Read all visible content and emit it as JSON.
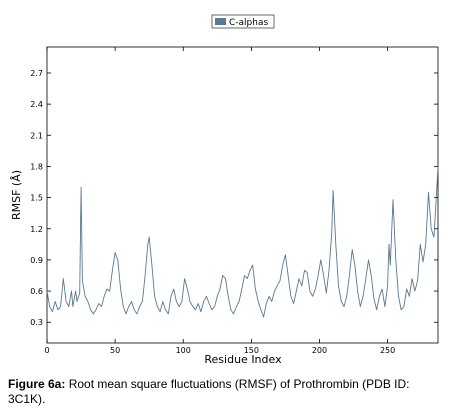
{
  "chart_data": {
    "type": "line",
    "xlabel": "Residue Index",
    "ylabel": "RMSF (Å)",
    "xlim": [
      0,
      287
    ],
    "ylim": [
      0.1,
      2.95
    ],
    "x_ticks": [
      0,
      50,
      100,
      150,
      200,
      250
    ],
    "y_ticks": [
      0.3,
      0.6,
      0.9,
      1.2,
      1.5,
      1.8,
      2.1,
      2.4,
      2.7
    ],
    "grid": false,
    "legend_position": "top-center",
    "series_color": "#5a7891",
    "series": [
      {
        "name": "C-alphas",
        "points": [
          [
            0,
            0.6
          ],
          [
            2,
            0.45
          ],
          [
            4,
            0.4
          ],
          [
            6,
            0.5
          ],
          [
            8,
            0.42
          ],
          [
            10,
            0.45
          ],
          [
            12,
            0.72
          ],
          [
            14,
            0.5
          ],
          [
            16,
            0.45
          ],
          [
            18,
            0.6
          ],
          [
            19,
            0.45
          ],
          [
            21,
            0.6
          ],
          [
            22,
            0.5
          ],
          [
            24,
            0.58
          ],
          [
            25,
            1.6
          ],
          [
            26,
            0.7
          ],
          [
            28,
            0.55
          ],
          [
            30,
            0.5
          ],
          [
            32,
            0.42
          ],
          [
            34,
            0.38
          ],
          [
            36,
            0.42
          ],
          [
            38,
            0.48
          ],
          [
            40,
            0.45
          ],
          [
            42,
            0.55
          ],
          [
            44,
            0.62
          ],
          [
            46,
            0.6
          ],
          [
            48,
            0.8
          ],
          [
            50,
            0.97
          ],
          [
            52,
            0.9
          ],
          [
            54,
            0.62
          ],
          [
            56,
            0.45
          ],
          [
            58,
            0.38
          ],
          [
            60,
            0.45
          ],
          [
            62,
            0.5
          ],
          [
            64,
            0.42
          ],
          [
            66,
            0.38
          ],
          [
            68,
            0.45
          ],
          [
            70,
            0.5
          ],
          [
            72,
            0.75
          ],
          [
            74,
            1.05
          ],
          [
            75,
            1.12
          ],
          [
            77,
            0.85
          ],
          [
            79,
            0.55
          ],
          [
            81,
            0.45
          ],
          [
            83,
            0.4
          ],
          [
            85,
            0.5
          ],
          [
            87,
            0.42
          ],
          [
            89,
            0.38
          ],
          [
            91,
            0.55
          ],
          [
            93,
            0.62
          ],
          [
            95,
            0.5
          ],
          [
            97,
            0.45
          ],
          [
            99,
            0.5
          ],
          [
            101,
            0.72
          ],
          [
            103,
            0.62
          ],
          [
            105,
            0.5
          ],
          [
            107,
            0.45
          ],
          [
            109,
            0.42
          ],
          [
            111,
            0.48
          ],
          [
            113,
            0.4
          ],
          [
            115,
            0.5
          ],
          [
            117,
            0.55
          ],
          [
            119,
            0.48
          ],
          [
            121,
            0.42
          ],
          [
            123,
            0.45
          ],
          [
            125,
            0.55
          ],
          [
            127,
            0.62
          ],
          [
            129,
            0.75
          ],
          [
            131,
            0.72
          ],
          [
            133,
            0.55
          ],
          [
            135,
            0.42
          ],
          [
            137,
            0.38
          ],
          [
            139,
            0.45
          ],
          [
            141,
            0.5
          ],
          [
            143,
            0.62
          ],
          [
            145,
            0.75
          ],
          [
            147,
            0.72
          ],
          [
            149,
            0.8
          ],
          [
            151,
            0.85
          ],
          [
            153,
            0.62
          ],
          [
            155,
            0.5
          ],
          [
            157,
            0.42
          ],
          [
            159,
            0.35
          ],
          [
            161,
            0.48
          ],
          [
            163,
            0.55
          ],
          [
            165,
            0.5
          ],
          [
            167,
            0.6
          ],
          [
            169,
            0.65
          ],
          [
            171,
            0.7
          ],
          [
            173,
            0.85
          ],
          [
            175,
            0.95
          ],
          [
            177,
            0.75
          ],
          [
            179,
            0.55
          ],
          [
            181,
            0.48
          ],
          [
            183,
            0.6
          ],
          [
            185,
            0.72
          ],
          [
            187,
            0.65
          ],
          [
            189,
            0.8
          ],
          [
            191,
            0.78
          ],
          [
            193,
            0.6
          ],
          [
            195,
            0.55
          ],
          [
            197,
            0.62
          ],
          [
            199,
            0.75
          ],
          [
            201,
            0.9
          ],
          [
            203,
            0.75
          ],
          [
            205,
            0.58
          ],
          [
            207,
            0.8
          ],
          [
            209,
            1.15
          ],
          [
            210,
            1.57
          ],
          [
            212,
            1.05
          ],
          [
            214,
            0.65
          ],
          [
            216,
            0.5
          ],
          [
            218,
            0.45
          ],
          [
            220,
            0.55
          ],
          [
            222,
            0.75
          ],
          [
            224,
            1.0
          ],
          [
            226,
            0.85
          ],
          [
            228,
            0.6
          ],
          [
            230,
            0.45
          ],
          [
            232,
            0.55
          ],
          [
            234,
            0.72
          ],
          [
            236,
            0.9
          ],
          [
            238,
            0.75
          ],
          [
            240,
            0.52
          ],
          [
            242,
            0.42
          ],
          [
            244,
            0.55
          ],
          [
            246,
            0.62
          ],
          [
            248,
            0.45
          ],
          [
            250,
            0.65
          ],
          [
            251,
            1.05
          ],
          [
            252,
            0.85
          ],
          [
            254,
            1.48
          ],
          [
            256,
            0.9
          ],
          [
            258,
            0.55
          ],
          [
            260,
            0.42
          ],
          [
            262,
            0.45
          ],
          [
            264,
            0.62
          ],
          [
            266,
            0.55
          ],
          [
            268,
            0.72
          ],
          [
            270,
            0.6
          ],
          [
            272,
            0.7
          ],
          [
            274,
            1.05
          ],
          [
            276,
            0.88
          ],
          [
            278,
            1.05
          ],
          [
            280,
            1.55
          ],
          [
            282,
            1.2
          ],
          [
            284,
            1.12
          ],
          [
            286,
            1.55
          ],
          [
            287,
            1.8
          ]
        ]
      }
    ]
  },
  "caption": {
    "label": "Figure 6a:",
    "text": " Root mean square fluctuations (RMSF) of Prothrombin (PDB ID: 3C1K)."
  }
}
